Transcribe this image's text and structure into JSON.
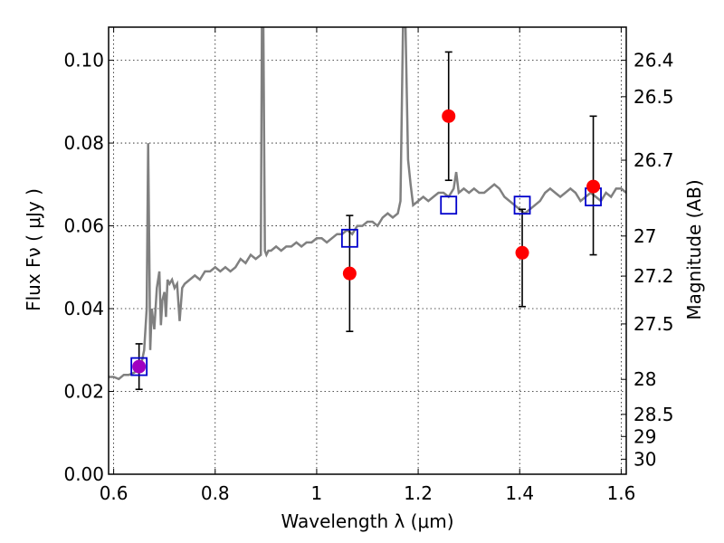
{
  "chart_data": {
    "type": "scatter",
    "xlabel": "Wavelength  λ (μm)",
    "ylabel": "Flux  Fν  ( μJy )",
    "ylabel_right": "Magnitude (AB)",
    "xlim": [
      0.59,
      1.61
    ],
    "ylim": [
      0.0,
      0.108
    ],
    "x_ticks": [
      0.6,
      0.8,
      1.0,
      1.2,
      1.4,
      1.6
    ],
    "x_tick_labels": [
      "0.6",
      "0.8",
      "1",
      "1.2",
      "1.4",
      "1.6"
    ],
    "y_ticks": [
      0.0,
      0.02,
      0.04,
      0.06,
      0.08,
      0.1
    ],
    "y_tick_labels": [
      "0.00",
      "0.02",
      "0.04",
      "0.06",
      "0.08",
      "0.10"
    ],
    "right_ticks": [
      {
        "mag": 26.4,
        "label": "26.4"
      },
      {
        "mag": 26.5,
        "label": "26.5"
      },
      {
        "mag": 26.7,
        "label": "26.7"
      },
      {
        "mag": 27.0,
        "label": "27"
      },
      {
        "mag": 27.2,
        "label": "27.2"
      },
      {
        "mag": 27.5,
        "label": "27.5"
      },
      {
        "mag": 28.0,
        "label": "28"
      },
      {
        "mag": 28.5,
        "label": "28.5"
      },
      {
        "mag": 29.0,
        "label": "29"
      },
      {
        "mag": 30.0,
        "label": "30"
      }
    ],
    "grid": true,
    "colors": {
      "spectrum": "#808080",
      "observed": "#ff0000",
      "model": "#0000cc",
      "overlap": "#a000c0",
      "errorbar": "#000000"
    },
    "spectrum": {
      "x": [
        0.59,
        0.6,
        0.61,
        0.62,
        0.63,
        0.64,
        0.645,
        0.65,
        0.655,
        0.66,
        0.665,
        0.668,
        0.67,
        0.672,
        0.675,
        0.68,
        0.685,
        0.69,
        0.693,
        0.696,
        0.7,
        0.703,
        0.706,
        0.71,
        0.715,
        0.72,
        0.725,
        0.73,
        0.735,
        0.74,
        0.75,
        0.76,
        0.77,
        0.78,
        0.79,
        0.8,
        0.81,
        0.82,
        0.83,
        0.84,
        0.85,
        0.86,
        0.87,
        0.88,
        0.89,
        0.892,
        0.895,
        0.898,
        0.901,
        0.905,
        0.91,
        0.92,
        0.93,
        0.94,
        0.95,
        0.96,
        0.97,
        0.98,
        0.99,
        1.0,
        1.01,
        1.02,
        1.03,
        1.04,
        1.05,
        1.06,
        1.07,
        1.08,
        1.09,
        1.1,
        1.11,
        1.12,
        1.13,
        1.14,
        1.15,
        1.16,
        1.165,
        1.17,
        1.175,
        1.18,
        1.185,
        1.19,
        1.2,
        1.21,
        1.22,
        1.23,
        1.24,
        1.25,
        1.26,
        1.27,
        1.275,
        1.28,
        1.29,
        1.3,
        1.31,
        1.32,
        1.33,
        1.34,
        1.35,
        1.36,
        1.37,
        1.38,
        1.39,
        1.4,
        1.41,
        1.42,
        1.43,
        1.44,
        1.45,
        1.46,
        1.47,
        1.48,
        1.49,
        1.5,
        1.51,
        1.52,
        1.53,
        1.54,
        1.55,
        1.56,
        1.57,
        1.58,
        1.59,
        1.6,
        1.61
      ],
      "y": [
        0.0235,
        0.0235,
        0.023,
        0.024,
        0.024,
        0.0245,
        0.025,
        0.026,
        0.027,
        0.03,
        0.04,
        0.08,
        0.055,
        0.03,
        0.04,
        0.035,
        0.045,
        0.049,
        0.036,
        0.042,
        0.044,
        0.038,
        0.047,
        0.046,
        0.047,
        0.045,
        0.046,
        0.037,
        0.045,
        0.046,
        0.047,
        0.048,
        0.047,
        0.049,
        0.049,
        0.05,
        0.049,
        0.05,
        0.049,
        0.05,
        0.052,
        0.051,
        0.053,
        0.052,
        0.053,
        0.108,
        0.108,
        0.054,
        0.053,
        0.054,
        0.054,
        0.055,
        0.054,
        0.055,
        0.055,
        0.056,
        0.055,
        0.056,
        0.056,
        0.057,
        0.057,
        0.056,
        0.057,
        0.058,
        0.058,
        0.059,
        0.058,
        0.06,
        0.06,
        0.061,
        0.061,
        0.06,
        0.062,
        0.063,
        0.062,
        0.063,
        0.066,
        0.108,
        0.108,
        0.076,
        0.07,
        0.065,
        0.066,
        0.067,
        0.066,
        0.067,
        0.068,
        0.068,
        0.067,
        0.069,
        0.073,
        0.068,
        0.069,
        0.068,
        0.069,
        0.068,
        0.068,
        0.069,
        0.07,
        0.069,
        0.067,
        0.066,
        0.065,
        0.064,
        0.063,
        0.064,
        0.065,
        0.066,
        0.068,
        0.069,
        0.068,
        0.067,
        0.068,
        0.069,
        0.068,
        0.066,
        0.067,
        0.068,
        0.067,
        0.066,
        0.068,
        0.067,
        0.069,
        0.069,
        0.068
      ]
    },
    "series": [
      {
        "marker": "square",
        "x": [
          0.65,
          1.065,
          1.26,
          1.405,
          1.545
        ],
        "y": [
          0.026,
          0.057,
          0.065,
          0.065,
          0.067
        ]
      },
      {
        "marker": "circle",
        "x": [
          0.65,
          1.065,
          1.26,
          1.405,
          1.545
        ],
        "y": [
          0.026,
          0.0485,
          0.0865,
          0.0535,
          0.0695
        ],
        "yerr_low": [
          0.0205,
          0.0345,
          0.071,
          0.0405,
          0.053
        ],
        "yerr_high": [
          0.0315,
          0.0625,
          0.102,
          0.064,
          0.0865
        ]
      }
    ]
  }
}
